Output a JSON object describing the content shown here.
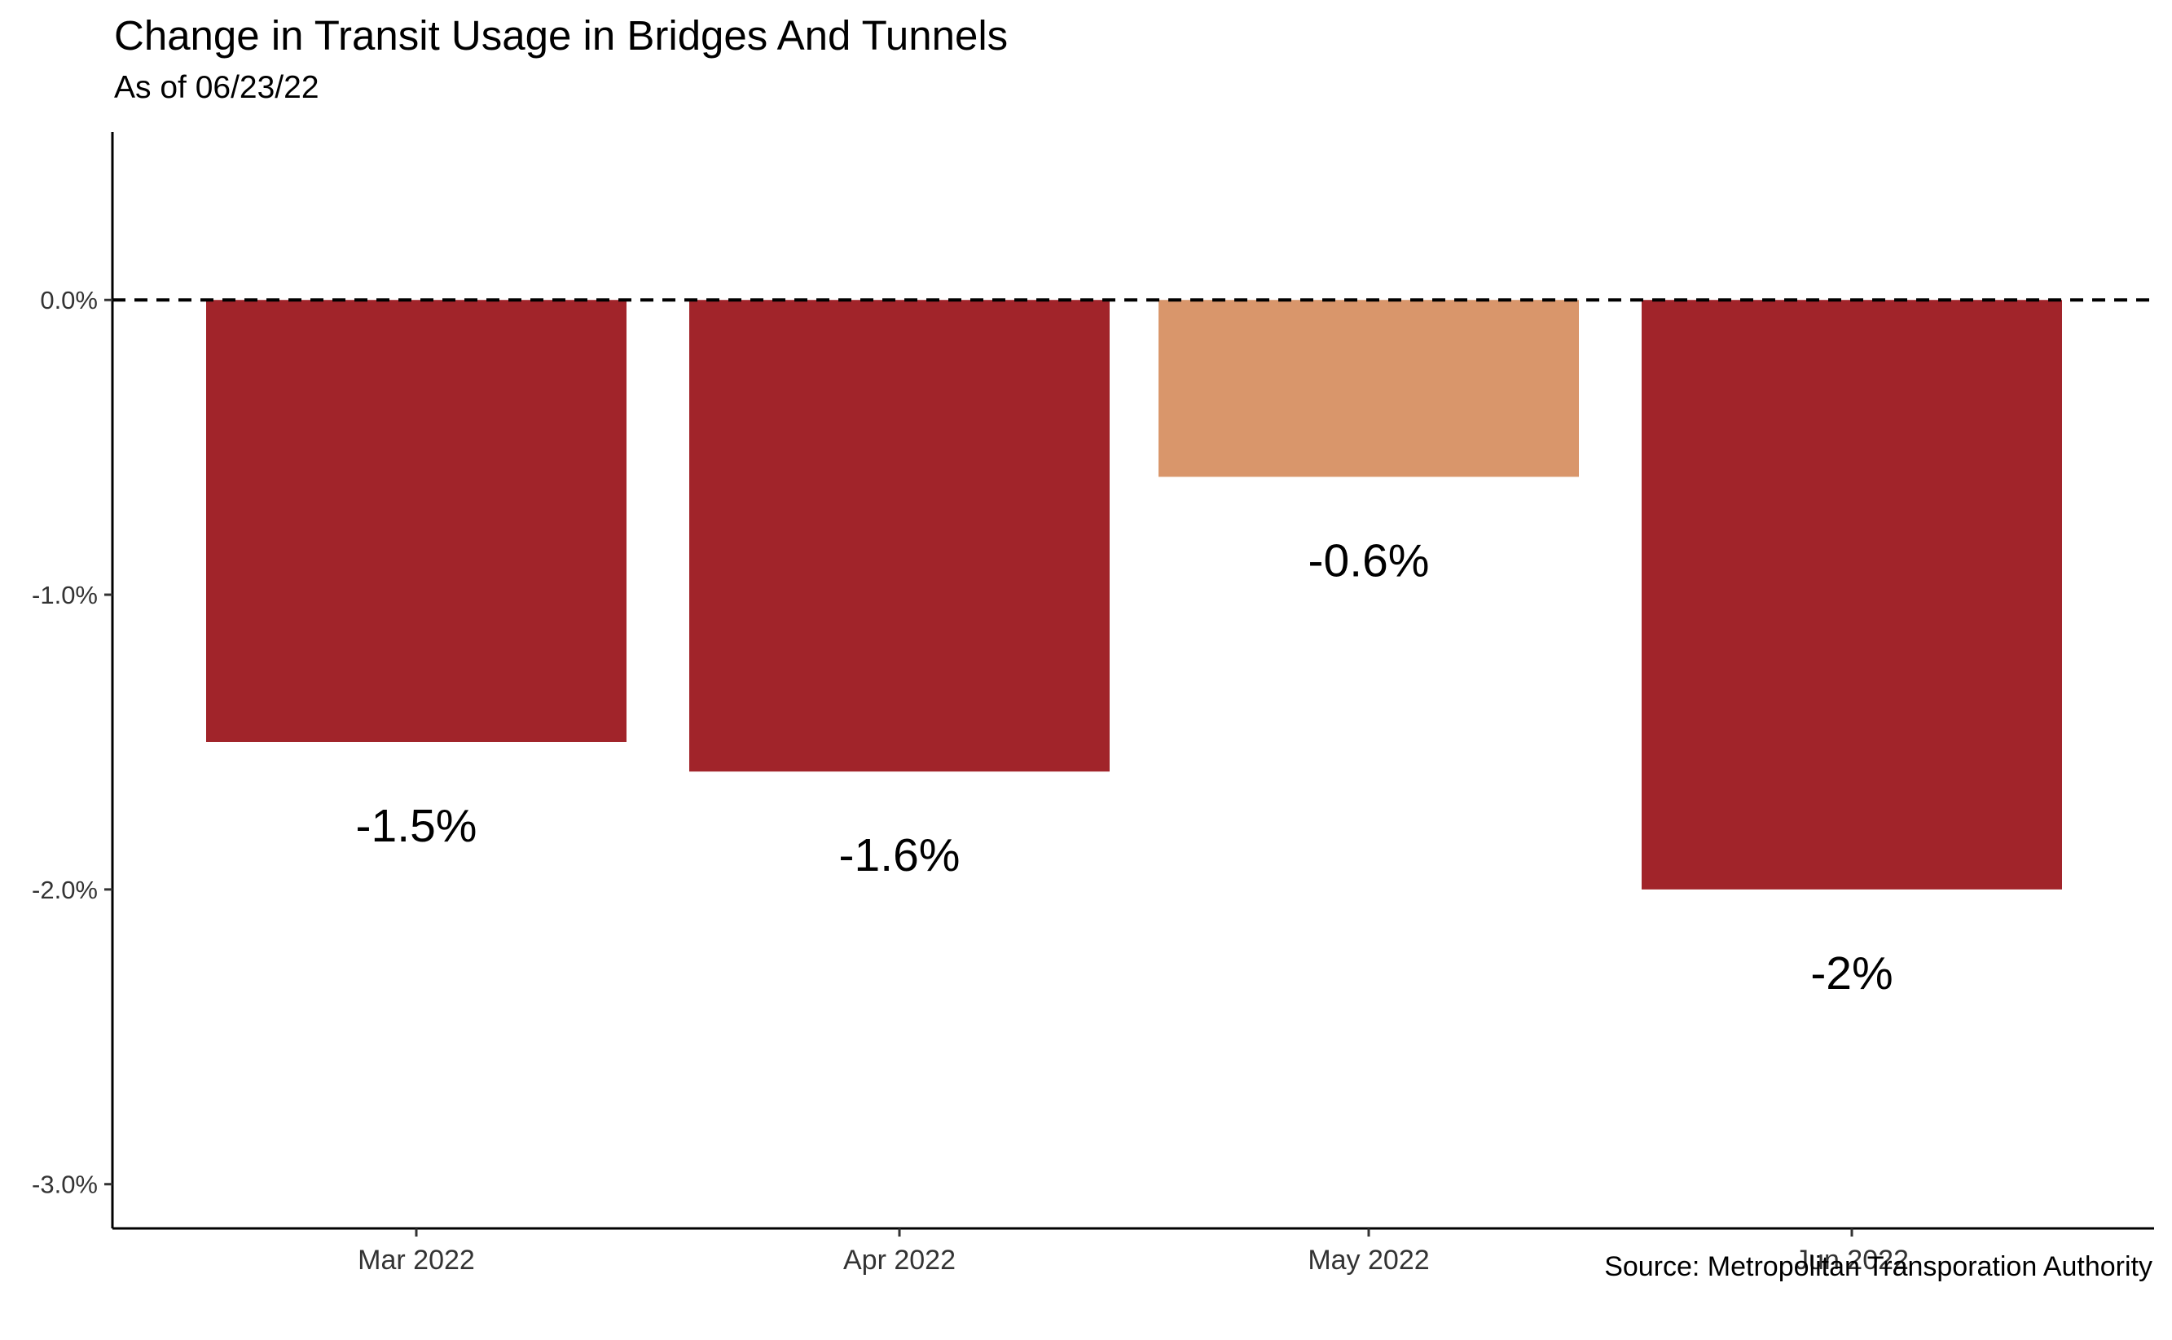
{
  "title": "Change in Transit Usage in Bridges And Tunnels",
  "subtitle": "As of 06/23/22",
  "caption": "Source: Metropolitan Transporation Authority",
  "colors": {
    "bar_large_decline": "#a1242a",
    "bar_small_decline": "#d9966b",
    "axis": "#000000",
    "reference_line": "#000000"
  },
  "chart_data": {
    "type": "bar",
    "title": "Change in Transit Usage in Bridges And Tunnels",
    "subtitle": "As of 06/23/22",
    "categories": [
      "Mar 2022",
      "Apr 2022",
      "May 2022",
      "Jun 2022"
    ],
    "values": [
      -1.5,
      -1.6,
      -0.6,
      -2.0
    ],
    "value_labels": [
      "-1.5%",
      "-1.6%",
      "-0.6%",
      "-2%"
    ],
    "bar_colors": [
      "#a1242a",
      "#a1242a",
      "#d9966b",
      "#a1242a"
    ],
    "xlabel": "",
    "ylabel": "",
    "ylim": [
      -3.15,
      0.57
    ],
    "yticks": [
      0,
      -1,
      -2,
      -3
    ],
    "ytick_labels": [
      "0.0%",
      "-1.0%",
      "-2.0%",
      "-3.0%"
    ],
    "reference_line": {
      "value": 0,
      "style": "dashed"
    },
    "grid": false,
    "legend": "none"
  }
}
